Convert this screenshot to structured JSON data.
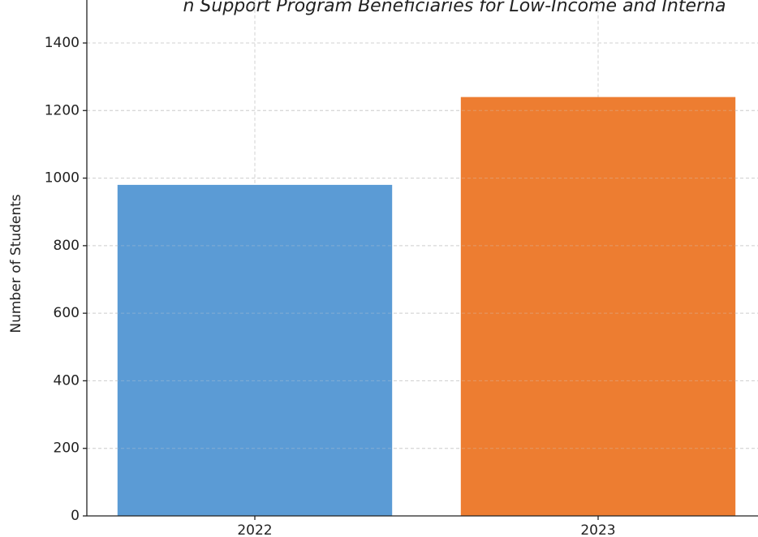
{
  "chart_data": {
    "type": "bar",
    "title": "n Support Program Beneficiaries for Low-Income and Interna",
    "y_label": "Number of Students",
    "categories": [
      "2022",
      "2023"
    ],
    "series": [
      {
        "name": null,
        "colors": [
          "#5b9bd5",
          "#ed7d31"
        ],
        "values": [
          980,
          1240
        ]
      }
    ],
    "ylim": [
      0,
      1600
    ],
    "yticks": [
      0,
      200,
      400,
      600,
      800,
      1000,
      1200,
      1400
    ],
    "grid": true
  }
}
